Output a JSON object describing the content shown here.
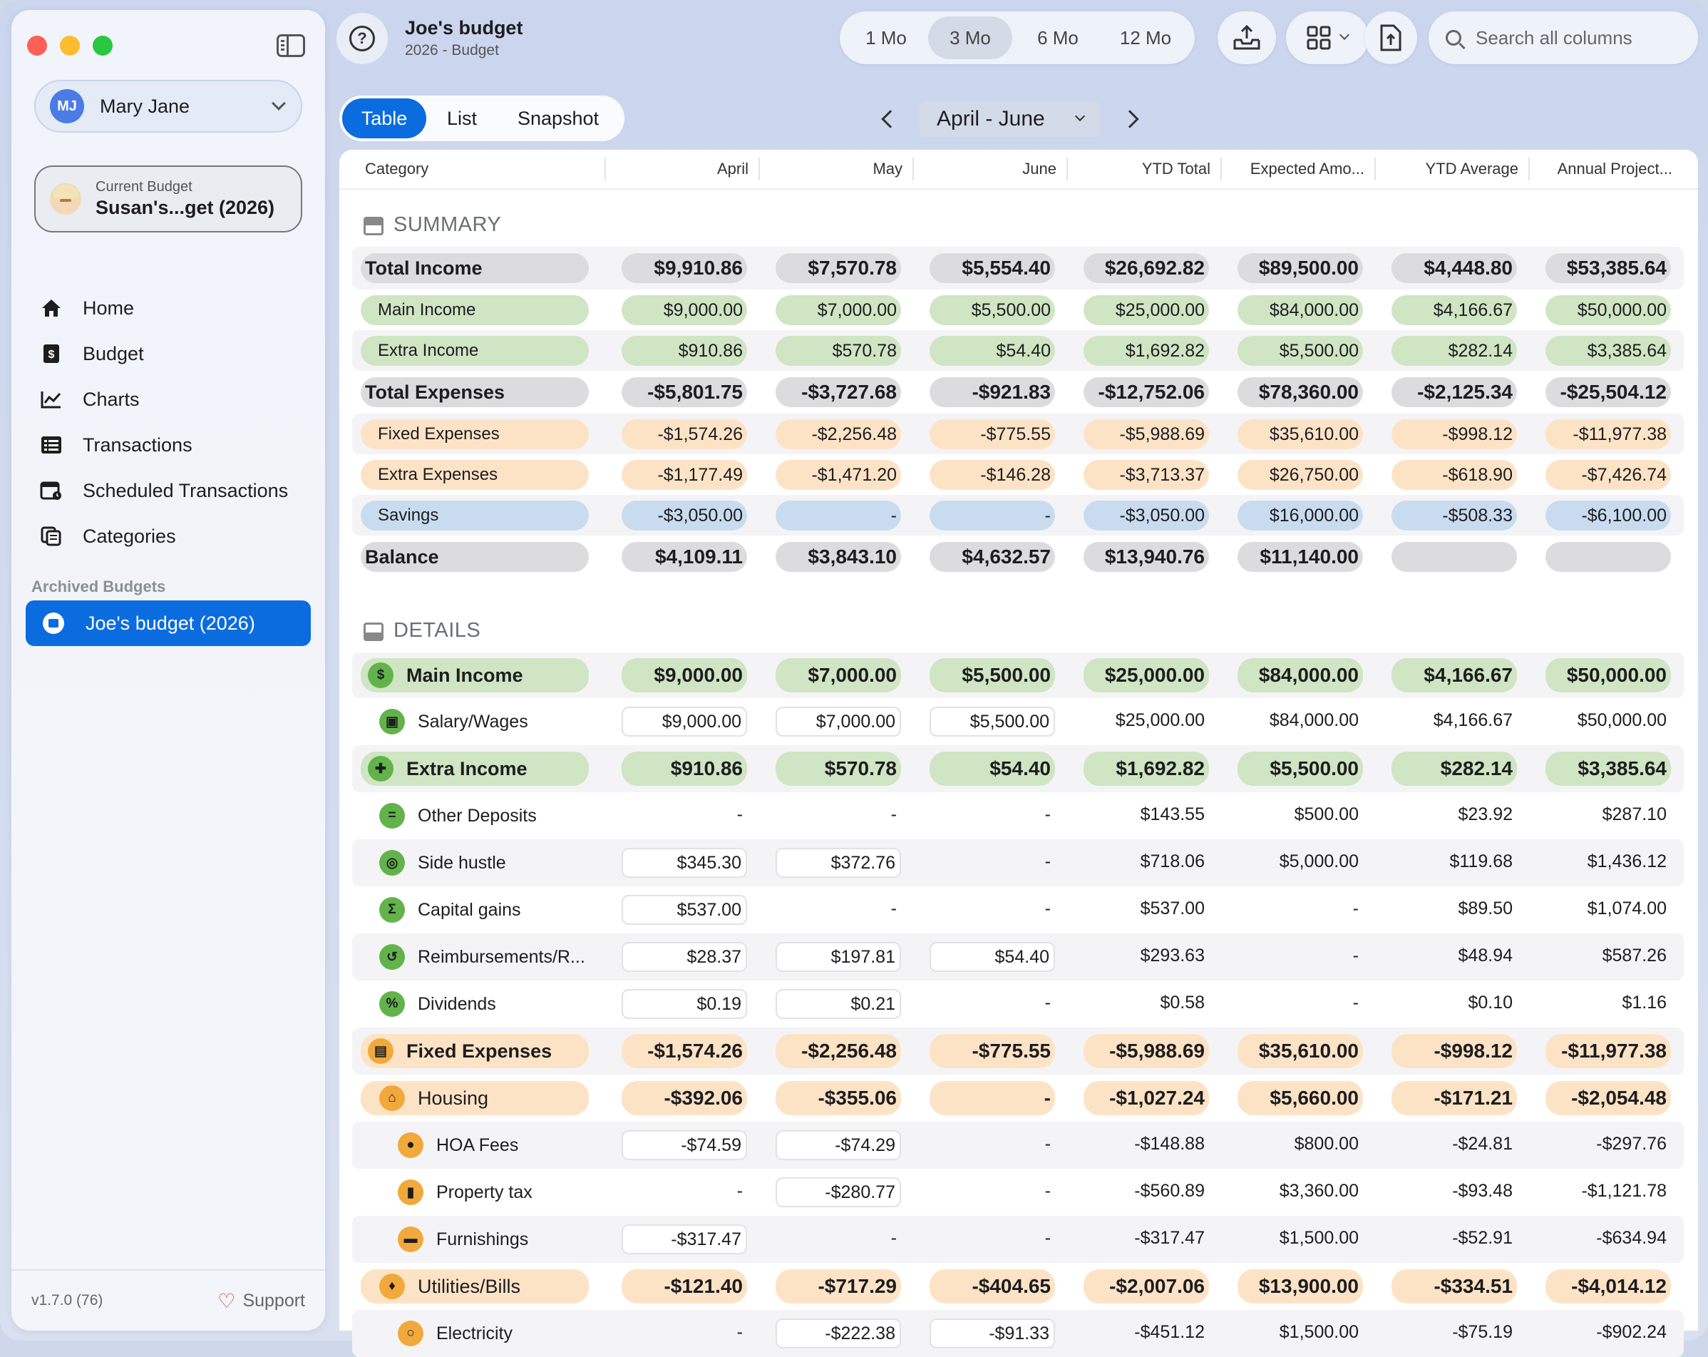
{
  "sidebar": {
    "user": {
      "initials": "MJ",
      "name": "Mary Jane"
    },
    "current_budget": {
      "label": "Current Budget",
      "name": "Susan's...get (2026)"
    },
    "nav": [
      "Home",
      "Budget",
      "Charts",
      "Transactions",
      "Scheduled Transactions",
      "Categories"
    ],
    "archived_label": "Archived Budgets",
    "archived_item": "Joe's budget (2026)",
    "version": "v1.7.0 (76)",
    "support": "Support"
  },
  "header": {
    "title": "Joe's budget",
    "subtitle": "2026 - Budget",
    "ranges": [
      "1 Mo",
      "3 Mo",
      "6 Mo",
      "12 Mo"
    ],
    "active_range": "3 Mo",
    "search_placeholder": "Search all columns"
  },
  "view_tabs": [
    "Table",
    "List",
    "Snapshot"
  ],
  "active_view": "Table",
  "period": "April - June",
  "columns": [
    "Category",
    "April",
    "May",
    "June",
    "YTD Total",
    "Expected Amo...",
    "YTD Average",
    "Annual Project..."
  ],
  "summary_title": "SUMMARY",
  "details_title": "DETAILS",
  "colors": {
    "accent": "#0a6cdf",
    "green_pill": "#cfe5c3",
    "orange_pill": "#fde3c6",
    "blue_pill": "#c9dcef",
    "gray_pill": "#dcdcdf"
  },
  "summary_rows": [
    {
      "label": "Total Income",
      "style": "gray",
      "bold": true,
      "values": [
        "$9,910.86",
        "$7,570.78",
        "$5,554.40",
        "$26,692.82",
        "$89,500.00",
        "$4,448.80",
        "$53,385.64"
      ]
    },
    {
      "label": "Main Income",
      "style": "green",
      "bold": false,
      "values": [
        "$9,000.00",
        "$7,000.00",
        "$5,500.00",
        "$25,000.00",
        "$84,000.00",
        "$4,166.67",
        "$50,000.00"
      ]
    },
    {
      "label": "Extra Income",
      "style": "green",
      "bold": false,
      "values": [
        "$910.86",
        "$570.78",
        "$54.40",
        "$1,692.82",
        "$5,500.00",
        "$282.14",
        "$3,385.64"
      ]
    },
    {
      "label": "Total Expenses",
      "style": "gray",
      "bold": true,
      "values": [
        "-$5,801.75",
        "-$3,727.68",
        "-$921.83",
        "-$12,752.06",
        "$78,360.00",
        "-$2,125.34",
        "-$25,504.12"
      ]
    },
    {
      "label": "Fixed Expenses",
      "style": "orange",
      "bold": false,
      "values": [
        "-$1,574.26",
        "-$2,256.48",
        "-$775.55",
        "-$5,988.69",
        "$35,610.00",
        "-$998.12",
        "-$11,977.38"
      ]
    },
    {
      "label": "Extra Expenses",
      "style": "orange",
      "bold": false,
      "values": [
        "-$1,177.49",
        "-$1,471.20",
        "-$146.28",
        "-$3,713.37",
        "$26,750.00",
        "-$618.90",
        "-$7,426.74"
      ]
    },
    {
      "label": "Savings",
      "style": "blue",
      "bold": false,
      "values": [
        "-$3,050.00",
        "-",
        "-",
        "-$3,050.00",
        "$16,000.00",
        "-$508.33",
        "-$6,100.00"
      ]
    },
    {
      "label": "Balance",
      "style": "gray",
      "bold": true,
      "values": [
        "$4,109.11",
        "$3,843.10",
        "$4,632.57",
        "$13,940.76",
        "$11,140.00",
        "",
        ""
      ]
    }
  ],
  "detail_rows": [
    {
      "label": "Main Income",
      "kind": "group",
      "style": "green",
      "icon": "dollar-icon",
      "glyph": "$",
      "values": [
        "$9,000.00",
        "$7,000.00",
        "$5,500.00",
        "$25,000.00",
        "$84,000.00",
        "$4,166.67",
        "$50,000.00"
      ]
    },
    {
      "label": "Salary/Wages",
      "kind": "item",
      "style": "green",
      "icon": "briefcase-icon",
      "glyph": "▣",
      "boxed": [
        true,
        true,
        true,
        false,
        false,
        false,
        false
      ],
      "values": [
        "$9,000.00",
        "$7,000.00",
        "$5,500.00",
        "$25,000.00",
        "$84,000.00",
        "$4,166.67",
        "$50,000.00"
      ]
    },
    {
      "label": "Extra Income",
      "kind": "group",
      "style": "green",
      "icon": "gift-icon",
      "glyph": "✚",
      "values": [
        "$910.86",
        "$570.78",
        "$54.40",
        "$1,692.82",
        "$5,500.00",
        "$282.14",
        "$3,385.64"
      ]
    },
    {
      "label": "Other Deposits",
      "kind": "item",
      "style": "green",
      "icon": "equals-icon",
      "glyph": "=",
      "boxed": [
        false,
        false,
        false,
        false,
        false,
        false,
        false
      ],
      "values": [
        "-",
        "-",
        "-",
        "$143.55",
        "$500.00",
        "$23.92",
        "$287.10"
      ]
    },
    {
      "label": "Side hustle",
      "kind": "item",
      "style": "green",
      "icon": "lifebuoy-icon",
      "glyph": "◎",
      "boxed": [
        true,
        true,
        false,
        false,
        false,
        false,
        false
      ],
      "values": [
        "$345.30",
        "$372.76",
        "-",
        "$718.06",
        "$5,000.00",
        "$119.68",
        "$1,436.12"
      ]
    },
    {
      "label": "Capital gains",
      "kind": "item",
      "style": "green",
      "icon": "sigma-icon",
      "glyph": "Σ",
      "boxed": [
        true,
        false,
        false,
        false,
        false,
        false,
        false
      ],
      "values": [
        "$537.00",
        "-",
        "-",
        "$537.00",
        "-",
        "$89.50",
        "$1,074.00"
      ]
    },
    {
      "label": "Reimbursements/R...",
      "kind": "item",
      "style": "green",
      "icon": "refund-icon",
      "glyph": "↺",
      "boxed": [
        true,
        true,
        true,
        false,
        false,
        false,
        false
      ],
      "values": [
        "$28.37",
        "$197.81",
        "$54.40",
        "$293.63",
        "-",
        "$48.94",
        "$587.26"
      ]
    },
    {
      "label": "Dividends",
      "kind": "item",
      "style": "green",
      "icon": "percent-icon",
      "glyph": "%",
      "boxed": [
        true,
        true,
        false,
        false,
        false,
        false,
        false
      ],
      "values": [
        "$0.19",
        "$0.21",
        "-",
        "$0.58",
        "-",
        "$0.10",
        "$1.16"
      ]
    },
    {
      "label": "Fixed Expenses",
      "kind": "group",
      "style": "orange",
      "icon": "pin-icon",
      "glyph": "▤",
      "values": [
        "-$1,574.26",
        "-$2,256.48",
        "-$775.55",
        "-$5,988.69",
        "$35,610.00",
        "-$998.12",
        "-$11,977.38"
      ]
    },
    {
      "label": "Housing",
      "kind": "subgroup",
      "style": "orange",
      "icon": "house-icon",
      "glyph": "⌂",
      "values": [
        "-$392.06",
        "-$355.06",
        "-",
        "-$1,027.24",
        "$5,660.00",
        "-$171.21",
        "-$2,054.48"
      ]
    },
    {
      "label": "HOA Fees",
      "kind": "subitem",
      "style": "orange",
      "icon": "people-icon",
      "glyph": "●",
      "boxed": [
        true,
        true,
        false,
        false,
        false,
        false,
        false
      ],
      "values": [
        "-$74.59",
        "-$74.29",
        "-",
        "-$148.88",
        "$800.00",
        "-$24.81",
        "-$297.76"
      ]
    },
    {
      "label": "Property tax",
      "kind": "subitem",
      "style": "orange",
      "icon": "clipboard-icon",
      "glyph": "▮",
      "boxed": [
        false,
        true,
        false,
        false,
        false,
        false,
        false
      ],
      "values": [
        "-",
        "-$280.77",
        "-",
        "-$560.89",
        "$3,360.00",
        "-$93.48",
        "-$1,121.78"
      ]
    },
    {
      "label": "Furnishings",
      "kind": "subitem",
      "style": "orange",
      "icon": "sofa-icon",
      "glyph": "▬",
      "boxed": [
        true,
        false,
        false,
        false,
        false,
        false,
        false
      ],
      "values": [
        "-$317.47",
        "-",
        "-",
        "-$317.47",
        "$1,500.00",
        "-$52.91",
        "-$634.94"
      ]
    },
    {
      "label": "Utilities/Bills",
      "kind": "subgroup",
      "style": "orange",
      "icon": "bell-icon",
      "glyph": "♦",
      "values": [
        "-$121.40",
        "-$717.29",
        "-$404.65",
        "-$2,007.06",
        "$13,900.00",
        "-$334.51",
        "-$4,014.12"
      ]
    },
    {
      "label": "Electricity",
      "kind": "subitem",
      "style": "orange",
      "icon": "lightbulb-icon",
      "glyph": "○",
      "boxed": [
        false,
        true,
        true,
        false,
        false,
        false,
        false
      ],
      "values": [
        "-",
        "-$222.38",
        "-$91.33",
        "-$451.12",
        "$1,500.00",
        "-$75.19",
        "-$902.24"
      ]
    }
  ]
}
